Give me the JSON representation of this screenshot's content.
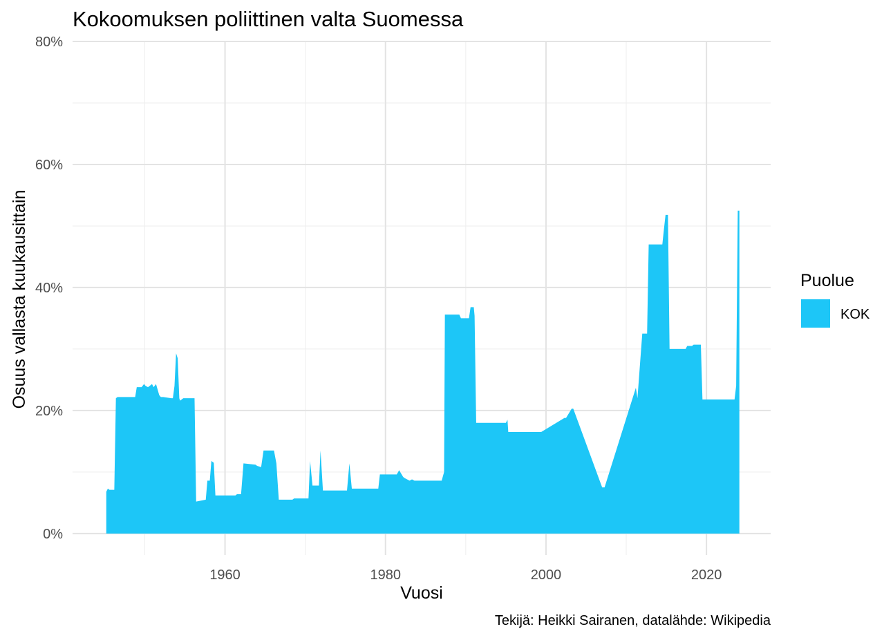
{
  "chart_data": {
    "type": "area",
    "title": "Kokoomuksen poliittinen valta Suomessa",
    "xlabel": "Vuosi",
    "ylabel": "Osuus vallasta kuukausittain",
    "caption": "Tekijä: Heikki Sairanen, datalähde: Wikipedia",
    "xlim": [
      1941.0,
      2028.0
    ],
    "ylim": [
      -3.5,
      80
    ],
    "x_ticks": [
      1960,
      1980,
      2000,
      2020
    ],
    "x_tick_labels": [
      "1960",
      "1980",
      "2000",
      "2020"
    ],
    "y_ticks": [
      0,
      20,
      40,
      60,
      80
    ],
    "y_tick_labels": [
      "0%",
      "20%",
      "40%",
      "60%",
      "80%"
    ],
    "legend": {
      "title": "Puolue",
      "position": "right"
    },
    "series": [
      {
        "name": "KOK",
        "color": "#1DC6F7",
        "x": [
          1945.2,
          1945.2,
          1945.4,
          1945.6,
          1946.2,
          1946.4,
          1946.6,
          1946.8,
          1948.8,
          1949.0,
          1949.6,
          1949.9,
          1950.1,
          1950.4,
          1950.9,
          1951.1,
          1951.4,
          1951.8,
          1952.0,
          1952.3,
          1953.3,
          1953.5,
          1953.7,
          1953.9,
          1954.1,
          1954.3,
          1954.4,
          1954.8,
          1955.1,
          1956.2,
          1956.4,
          1957.6,
          1957.8,
          1958.1,
          1958.3,
          1958.6,
          1958.8,
          1959.1,
          1961.3,
          1961.5,
          1962.0,
          1962.3,
          1963.8,
          1964.0,
          1964.5,
          1964.8,
          1966.1,
          1966.4,
          1966.7,
          1968.4,
          1968.6,
          1970.4,
          1970.6,
          1970.9,
          1971.7,
          1971.9,
          1972.2,
          1975.2,
          1975.5,
          1975.8,
          1979.1,
          1979.3,
          1981.4,
          1981.7,
          1982.2,
          1982.4,
          1983.0,
          1983.3,
          1983.6,
          1987.0,
          1987.3,
          1987.4,
          1989.2,
          1989.4,
          1990.4,
          1990.6,
          1991.0,
          1991.1,
          1991.3,
          1995.0,
          1995.2,
          1995.3,
          1999.0,
          1999.4,
          2002.3,
          2002.5,
          2003.2,
          2003.4,
          2007.0,
          2007.3,
          2011.2,
          2011.4,
          2012.0,
          2012.6,
          2012.8,
          2014.5,
          2014.7,
          2014.9,
          2015.2,
          2015.4,
          2017.4,
          2017.6,
          2018.2,
          2018.4,
          2019.3,
          2019.5,
          2023.5,
          2023.7,
          2023.9,
          2024.1
        ],
        "y": [
          0,
          6.8,
          7.3,
          7.1,
          7.1,
          22.0,
          22.2,
          22.2,
          22.2,
          23.8,
          23.8,
          24.3,
          24.0,
          23.8,
          24.3,
          23.8,
          24.3,
          22.5,
          22.2,
          22.2,
          22.0,
          22.0,
          24.0,
          29.3,
          28.5,
          22.0,
          21.6,
          22.0,
          22.0,
          22.0,
          5.2,
          5.5,
          8.6,
          8.6,
          11.8,
          11.5,
          6.2,
          6.2,
          6.2,
          6.4,
          6.4,
          11.4,
          11.2,
          11.0,
          10.8,
          13.5,
          13.5,
          11.4,
          5.5,
          5.5,
          5.7,
          5.7,
          11.8,
          7.8,
          7.8,
          13.5,
          7.0,
          7.0,
          11.4,
          7.3,
          7.3,
          9.6,
          9.6,
          10.3,
          9.2,
          9.0,
          8.6,
          8.8,
          8.6,
          8.6,
          10.0,
          35.6,
          35.6,
          35.0,
          35.0,
          36.8,
          36.8,
          35.4,
          18.0,
          18.0,
          18.5,
          16.5,
          16.5,
          16.5,
          18.8,
          18.8,
          20.3,
          20.3,
          7.5,
          7.5,
          23.7,
          22.0,
          32.5,
          32.5,
          47.0,
          47.0,
          49.5,
          51.8,
          51.8,
          30.0,
          30.0,
          30.5,
          30.5,
          30.7,
          30.7,
          21.8,
          21.8,
          24.0,
          52.5,
          52.5
        ]
      }
    ]
  }
}
